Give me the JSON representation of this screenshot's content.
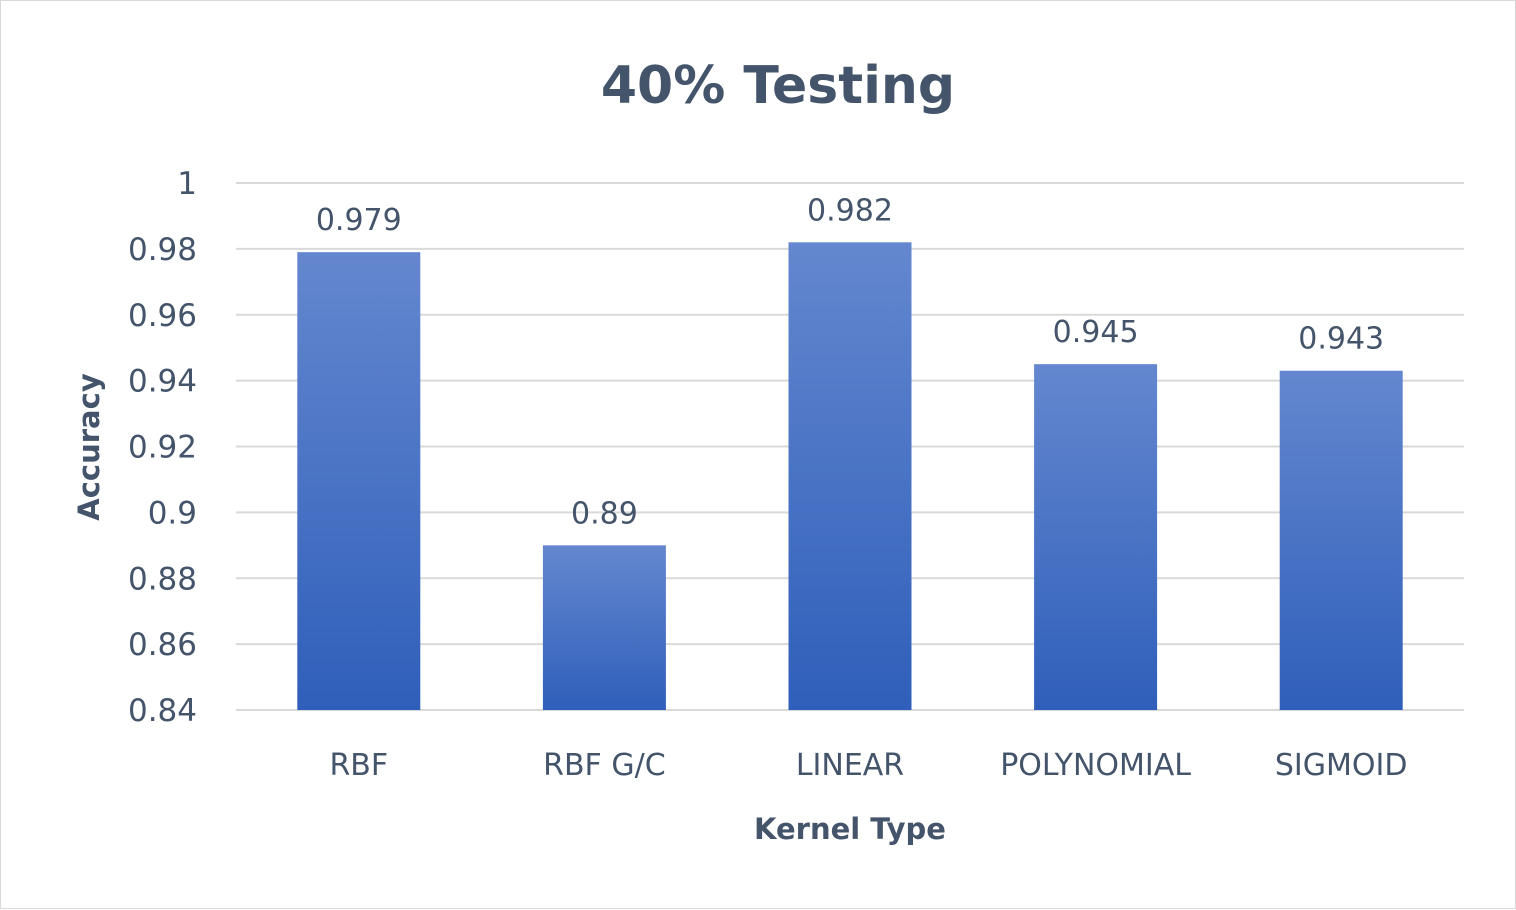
{
  "chart_data": {
    "type": "bar",
    "title": "40% Testing",
    "xlabel": "Kernel Type",
    "ylabel": "Accuracy",
    "categories": [
      "RBF",
      "RBF G/C",
      "LINEAR",
      "POLYNOMIAL",
      "SIGMOID"
    ],
    "values": [
      0.979,
      0.89,
      0.982,
      0.945,
      0.943
    ],
    "data_labels": [
      "0.979",
      "0.89",
      "0.982",
      "0.945",
      "0.943"
    ],
    "ylim": [
      0.84,
      1
    ],
    "yticks": [
      0.84,
      0.86,
      0.88,
      0.9,
      0.92,
      0.94,
      0.96,
      0.98,
      1
    ],
    "ytick_labels": [
      "0.84",
      "0.86",
      "0.88",
      "0.9",
      "0.92",
      "0.94",
      "0.96",
      "0.98",
      "1"
    ],
    "grid": true,
    "legend": "none",
    "colors": {
      "bar_top": "#6487cf",
      "bar_bottom": "#2f5fba",
      "text": "#44546a",
      "grid": "#d9d9d9"
    }
  }
}
